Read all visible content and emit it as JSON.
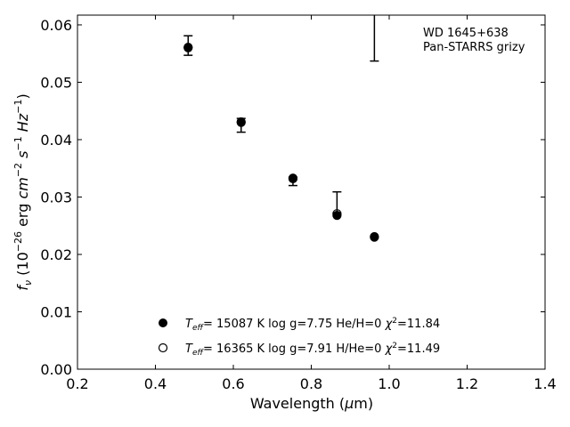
{
  "chart_data": {
    "type": "scatter",
    "title": "",
    "xlabel": "Wavelength (μm)",
    "ylabel": "f_ν (10^-26 erg cm^-2 s^-1 Hz^-1)",
    "xlim": [
      0.2,
      1.4
    ],
    "ylim": [
      0.0,
      0.0617
    ],
    "xticks": [
      "0.2",
      "0.4",
      "0.6",
      "0.8",
      "1.0",
      "1.2",
      "1.4"
    ],
    "yticks": [
      "0.00",
      "0.01",
      "0.02",
      "0.03",
      "0.04",
      "0.05",
      "0.06"
    ],
    "grid": false,
    "legend_position": "bottom-center",
    "annotations": [
      "WD 1645+638",
      "Pan-STARRS grizy"
    ],
    "observed": {
      "bands": [
        "g",
        "r",
        "i",
        "z",
        "y"
      ],
      "x": [
        0.484,
        0.62,
        0.753,
        0.866,
        0.962
      ],
      "y": [
        0.0564,
        0.0425,
        0.0327,
        0.0278,
        null
      ],
      "err_low": [
        0.0017,
        0.0012,
        0.0007,
        0.0008,
        null
      ],
      "err_high": [
        0.0017,
        0.0012,
        0.0007,
        0.0031,
        null
      ],
      "upper_limit_low": [
        null,
        null,
        null,
        null,
        0.0537
      ]
    },
    "series": [
      {
        "name": "T_eff= 15087 K  log g=7.75  He/H=0  χ²=11.84",
        "marker": "filled-circle",
        "x": [
          0.484,
          0.62,
          0.753,
          0.866,
          0.962
        ],
        "y": [
          0.056,
          0.043,
          0.0332,
          0.0268,
          0.023
        ]
      },
      {
        "name": "T_eff= 16365 K  log g=7.91  H/He=0  χ²=11.49",
        "marker": "open-circle",
        "x": [
          0.484,
          0.62,
          0.753,
          0.866,
          0.962
        ],
        "y": [
          0.0561,
          0.0431,
          0.0333,
          0.0271,
          0.0231
        ]
      }
    ],
    "colors": {
      "axis": "#000000",
      "marker": "#000000",
      "background": "#ffffff"
    }
  }
}
